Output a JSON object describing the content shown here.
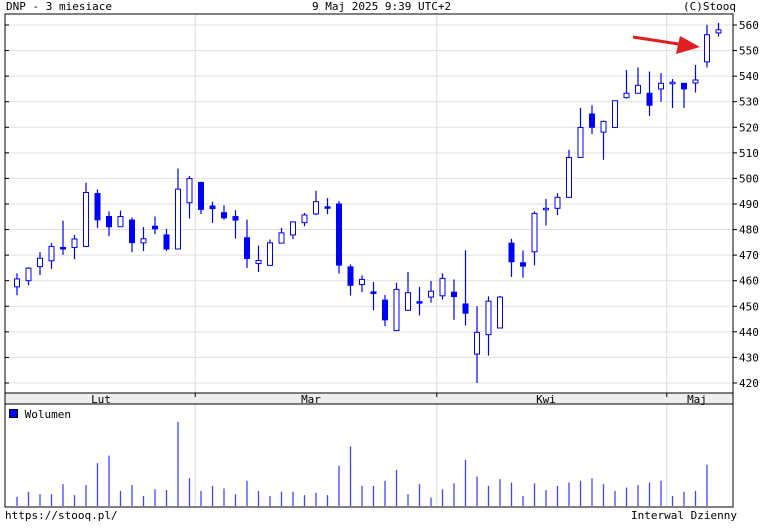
{
  "header": {
    "title": "DNP - 3 miesiace",
    "datetime": "9 Maj 2025 9:39 UTC+2",
    "copyright": "(C)Stooq"
  },
  "footer": {
    "url": "https://stooq.pl/",
    "interval": "Interwal Dzienny"
  },
  "colors": {
    "candle": "#0000ff",
    "volume": "#4444ff",
    "arrow": "#e02020",
    "grid": "#e0e0e0",
    "axis_strip": "#eeeeee"
  },
  "chart_data": [
    {
      "type": "candlestick",
      "title": "DNP - 3 miesiace",
      "y_ticks": [
        420,
        430,
        440,
        450,
        460,
        470,
        480,
        490,
        500,
        510,
        520,
        530,
        540,
        550,
        560
      ],
      "ylim": [
        415,
        563
      ],
      "y_axis_position": "right",
      "x_tick_labels": [
        "Lut",
        "Mar",
        "Kwi",
        "Maj"
      ],
      "grid": true,
      "annotation": "red arrow pointing at the second-to-last candle",
      "ohlc": [
        [
          457.6,
          462.9,
          454.3,
          460.7
        ],
        [
          460.0,
          465.3,
          458.2,
          464.9
        ],
        [
          465.5,
          471.2,
          462.2,
          468.8
        ],
        [
          467.8,
          474.7,
          464.6,
          473.4
        ],
        [
          473.0,
          483.5,
          470.1,
          472.7
        ],
        [
          473.0,
          477.9,
          468.4,
          476.3
        ],
        [
          473.4,
          498.3,
          473.2,
          494.5
        ],
        [
          494.1,
          495.7,
          480.7,
          483.8
        ],
        [
          485.1,
          487.1,
          477.4,
          481.1
        ],
        [
          481.1,
          487.4,
          481.1,
          485.1
        ],
        [
          483.7,
          484.7,
          471.1,
          474.9
        ],
        [
          474.8,
          481.0,
          471.6,
          476.4
        ],
        [
          481.3,
          485.1,
          478.2,
          480.3
        ],
        [
          477.9,
          480.3,
          471.6,
          472.4
        ],
        [
          472.4,
          503.9,
          472.4,
          495.8
        ],
        [
          490.5,
          501.0,
          484.3,
          500.0
        ],
        [
          498.4,
          498.7,
          486.1,
          487.9
        ],
        [
          489.2,
          490.9,
          482.6,
          488.2
        ],
        [
          486.6,
          489.5,
          483.9,
          484.6
        ],
        [
          485.1,
          487.6,
          476.5,
          483.7
        ],
        [
          476.8,
          483.9,
          465.0,
          468.7
        ],
        [
          466.7,
          473.7,
          463.4,
          467.9
        ],
        [
          466.0,
          476.1,
          466.0,
          474.8
        ],
        [
          474.7,
          480.6,
          474.7,
          478.7
        ],
        [
          477.9,
          483.2,
          476.3,
          483.0
        ],
        [
          482.7,
          486.5,
          481.3,
          485.7
        ],
        [
          486.1,
          495.2,
          485.6,
          490.9
        ],
        [
          488.9,
          492.3,
          486.0,
          488.6
        ],
        [
          490.0,
          491.1,
          462.8,
          466.1
        ],
        [
          465.4,
          466.4,
          454.2,
          458.2
        ],
        [
          458.5,
          462.1,
          455.5,
          460.5
        ],
        [
          455.6,
          459.5,
          448.4,
          455.3
        ],
        [
          452.4,
          454.4,
          442.2,
          444.7
        ],
        [
          440.5,
          459.2,
          440.5,
          456.6
        ],
        [
          448.4,
          463.4,
          448.4,
          455.3
        ],
        [
          451.8,
          457.6,
          446.4,
          451.4
        ],
        [
          453.6,
          459.9,
          451.4,
          455.9
        ],
        [
          454.1,
          462.9,
          452.6,
          460.9
        ],
        [
          455.5,
          460.5,
          444.7,
          453.8
        ],
        [
          450.9,
          471.9,
          442.5,
          447.3
        ],
        [
          431.3,
          450.0,
          420.0,
          439.8
        ],
        [
          438.9,
          453.9,
          430.7,
          452.0
        ],
        [
          441.5,
          454.0,
          441.5,
          453.6
        ],
        [
          474.7,
          476.4,
          461.5,
          467.4
        ],
        [
          467.0,
          471.8,
          461.2,
          465.7
        ],
        [
          471.3,
          487.1,
          466.0,
          486.3
        ],
        [
          488.0,
          492.0,
          481.6,
          488.3
        ],
        [
          488.3,
          494.2,
          485.6,
          492.6
        ],
        [
          492.6,
          511.2,
          492.6,
          508.2
        ],
        [
          508.2,
          527.6,
          508.2,
          519.9
        ],
        [
          525.2,
          528.6,
          517.3,
          520.0
        ],
        [
          518.1,
          522.6,
          507.3,
          522.3
        ],
        [
          519.9,
          530.4,
          519.9,
          530.4
        ],
        [
          531.6,
          542.4,
          531.2,
          533.3
        ],
        [
          533.3,
          543.4,
          533.3,
          536.4
        ],
        [
          533.3,
          541.8,
          524.4,
          528.6
        ],
        [
          535.0,
          541.2,
          530.0,
          537.2
        ],
        [
          537.4,
          538.9,
          527.5,
          537.6
        ],
        [
          537.2,
          537.2,
          527.5,
          535.0
        ],
        [
          537.3,
          544.4,
          533.6,
          538.5
        ],
        [
          545.6,
          560.1,
          543.4,
          556.2
        ],
        [
          556.9,
          560.8,
          555.5,
          558.1
        ]
      ],
      "month_boundaries_after_index": [
        15,
        36,
        56
      ]
    },
    {
      "type": "bar",
      "legend": "Wolumen",
      "legend_position": "top-left",
      "values_relative_percent": [
        11,
        17,
        14,
        14,
        26,
        13,
        25,
        51,
        60,
        18,
        25,
        12,
        20,
        19,
        100,
        33,
        18,
        24,
        21,
        14,
        30,
        18,
        12,
        17,
        17,
        13,
        16,
        13,
        48,
        71,
        24,
        24,
        30,
        43,
        14,
        26,
        10,
        20,
        27,
        55,
        35,
        24,
        32,
        28,
        12,
        27,
        19,
        24,
        28,
        30,
        33,
        26,
        18,
        22,
        25,
        28,
        30,
        12,
        17,
        18,
        49,
        0
      ]
    }
  ]
}
